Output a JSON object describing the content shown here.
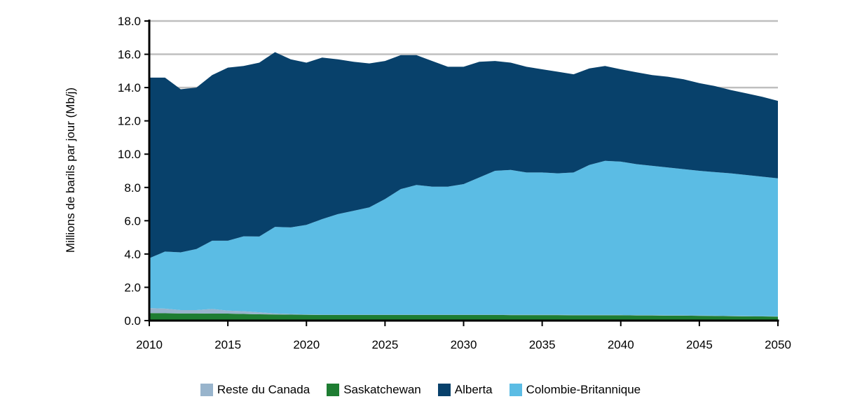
{
  "chart_data": {
    "type": "area",
    "stacked": true,
    "ylabel": "Millions de barils par jour (Mb/j)",
    "xlabel": "",
    "ylim": [
      0,
      18
    ],
    "xlim": [
      2010,
      2050
    ],
    "y_ticks": [
      "0.0",
      "2.0",
      "4.0",
      "6.0",
      "8.0",
      "10.0",
      "12.0",
      "14.0",
      "16.0",
      "18.0"
    ],
    "x_ticks": [
      "2010",
      "2015",
      "2020",
      "2025",
      "2030",
      "2035",
      "2040",
      "2045",
      "2050"
    ],
    "grid": "horizontal",
    "legend_position": "bottom",
    "x": [
      2010,
      2011,
      2012,
      2013,
      2014,
      2015,
      2016,
      2017,
      2018,
      2019,
      2020,
      2021,
      2022,
      2023,
      2024,
      2025,
      2026,
      2027,
      2028,
      2029,
      2030,
      2031,
      2032,
      2033,
      2034,
      2035,
      2036,
      2037,
      2038,
      2039,
      2040,
      2041,
      2042,
      2043,
      2044,
      2045,
      2046,
      2047,
      2048,
      2049,
      2050
    ],
    "series": [
      {
        "name": "Saskatchewan",
        "color": "#1e7d32",
        "values": [
          0.45,
          0.44,
          0.43,
          0.43,
          0.42,
          0.42,
          0.4,
          0.38,
          0.37,
          0.36,
          0.35,
          0.34,
          0.34,
          0.34,
          0.34,
          0.34,
          0.34,
          0.34,
          0.34,
          0.34,
          0.34,
          0.34,
          0.34,
          0.33,
          0.33,
          0.33,
          0.33,
          0.32,
          0.32,
          0.32,
          0.32,
          0.31,
          0.31,
          0.3,
          0.3,
          0.29,
          0.28,
          0.27,
          0.26,
          0.25,
          0.24
        ]
      },
      {
        "name": "Reste du Canada",
        "color": "#98b4cc",
        "values": [
          0.3,
          0.28,
          0.2,
          0.2,
          0.28,
          0.18,
          0.16,
          0.12,
          0.06,
          0.04,
          0.02,
          0.02,
          0.02,
          0.02,
          0.02,
          0.02,
          0.02,
          0.02,
          0.02,
          0.02,
          0.02,
          0.02,
          0.02,
          0.02,
          0.02,
          0.02,
          0.02,
          0.02,
          0.02,
          0.02,
          0.02,
          0.02,
          0.02,
          0.02,
          0.02,
          0.02,
          0.02,
          0.02,
          0.02,
          0.02,
          0.02
        ]
      },
      {
        "name": "Colombie-Britannique",
        "color": "#5bbce4",
        "values": [
          3.0,
          3.43,
          3.47,
          3.67,
          4.1,
          4.2,
          4.5,
          4.55,
          5.2,
          5.2,
          5.38,
          5.74,
          6.04,
          6.24,
          6.44,
          6.94,
          7.54,
          7.79,
          7.69,
          7.69,
          7.84,
          8.24,
          8.64,
          8.7,
          8.55,
          8.55,
          8.5,
          8.56,
          9.01,
          9.26,
          9.21,
          9.07,
          8.97,
          8.88,
          8.78,
          8.69,
          8.62,
          8.56,
          8.47,
          8.38,
          8.29
        ]
      },
      {
        "name": "Alberta",
        "color": "#08416b",
        "values": [
          10.85,
          10.45,
          9.8,
          9.7,
          9.95,
          10.4,
          10.24,
          10.45,
          10.5,
          10.1,
          9.75,
          9.7,
          9.3,
          8.95,
          8.65,
          8.3,
          8.05,
          7.8,
          7.55,
          7.2,
          7.05,
          6.95,
          6.6,
          6.45,
          6.35,
          6.2,
          6.1,
          5.9,
          5.8,
          5.7,
          5.55,
          5.52,
          5.45,
          5.45,
          5.4,
          5.27,
          5.17,
          5.0,
          4.9,
          4.8,
          4.65
        ]
      }
    ]
  },
  "legend": [
    {
      "label": "Reste du Canada",
      "color": "#98b4cc"
    },
    {
      "label": "Saskatchewan",
      "color": "#1e7d32"
    },
    {
      "label": "Alberta",
      "color": "#08416b"
    },
    {
      "label": "Colombie-Britannique",
      "color": "#5bbce4"
    }
  ]
}
